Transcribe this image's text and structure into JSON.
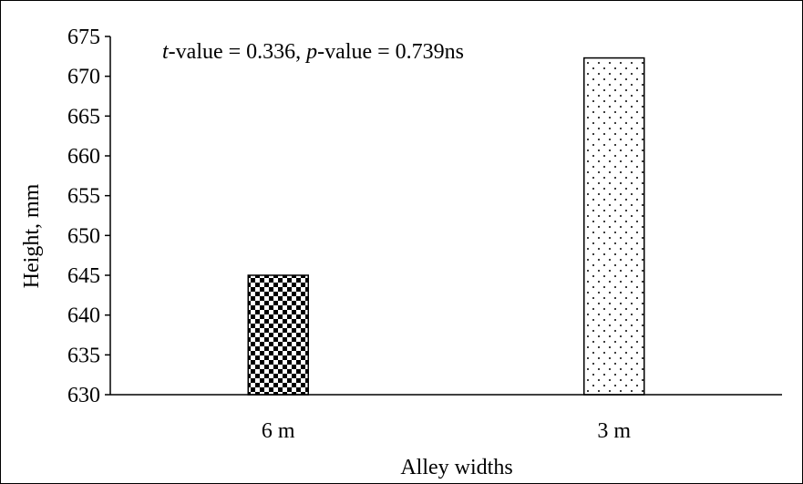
{
  "chart_data": {
    "type": "bar",
    "categories": [
      "6 m",
      "3 m"
    ],
    "values": [
      645,
      672.3
    ],
    "patterns": [
      "checkerboard",
      "dots"
    ],
    "xlabel": "Alley widths",
    "ylabel": "Height, mm",
    "ylim": [
      630,
      675
    ],
    "yticks": [
      630,
      635,
      640,
      645,
      650,
      655,
      660,
      665,
      670,
      675
    ],
    "grid": false,
    "legend": "none",
    "annotation": {
      "t_label": "t",
      "t_rest": "-value = 0.336, ",
      "p_label": "p",
      "p_rest": "-value = 0.739ns"
    }
  }
}
